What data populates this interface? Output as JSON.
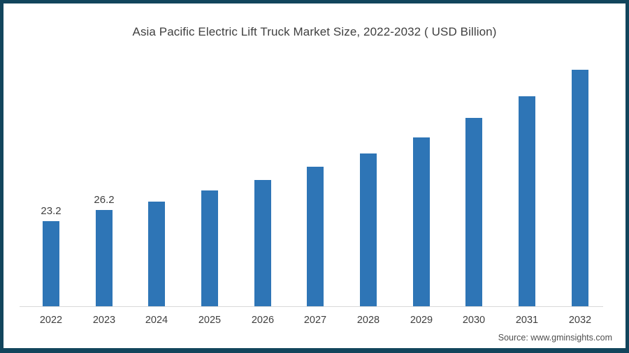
{
  "frame": {
    "border_color": "#12455c",
    "background_color": "#ffffff"
  },
  "chart_data": {
    "type": "bar",
    "title": "Asia Pacific Electric Lift Truck Market Size, 2022-2032 ( USD Billion)",
    "categories": [
      "2022",
      "2023",
      "2024",
      "2025",
      "2026",
      "2027",
      "2028",
      "2029",
      "2030",
      "2031",
      "2032"
    ],
    "values": [
      23.2,
      26.2,
      28.5,
      31.6,
      34.4,
      38.0,
      41.7,
      46.0,
      51.4,
      57.3,
      64.5
    ],
    "data_labels": [
      "23.2",
      "26.2",
      "",
      "",
      "",
      "",
      "",
      "",
      "",
      "",
      ""
    ],
    "xlabel": "",
    "ylabel": "",
    "ylim": [
      0,
      70
    ],
    "grid": false,
    "legend": false,
    "bar_color": "#2e75b6",
    "axis_line_color": "#d9d9d9",
    "label_color": "#3f3f3f"
  },
  "source": {
    "text": "Source: www.gminsights.com"
  }
}
